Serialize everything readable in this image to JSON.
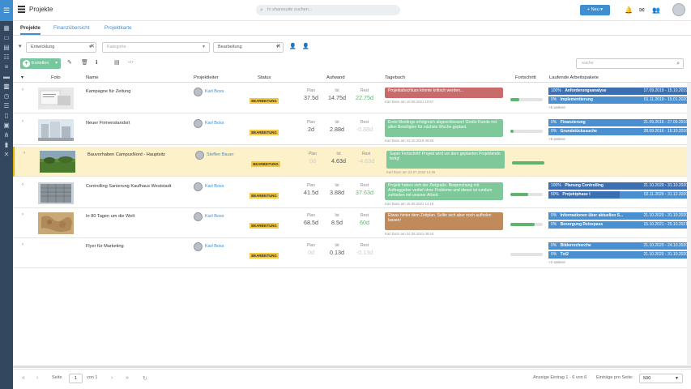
{
  "header": {
    "title": "Projekte",
    "search_placeholder": "In sharesuite suchen...",
    "new_button": "Neu"
  },
  "tabs": [
    "Projekte",
    "Finanzübersicht",
    "Projektkarte"
  ],
  "filters": {
    "department": "Entwicklung",
    "category_placeholder": "Kategorie",
    "status": "Bearbeitung"
  },
  "toolbar": {
    "create_label": "Erstellen",
    "search_placeholder": "suche"
  },
  "columns": {
    "photo": "Foto",
    "name": "Name",
    "lead": "Projektleiter",
    "status": "Status",
    "effort": "Aufwand",
    "journal": "Tagebuch",
    "progress": "Fortschritt",
    "packages": "Laufende Arbeitspakete"
  },
  "labels": {
    "plan": "Plan",
    "ist": "Ist",
    "rest": "Rest"
  },
  "rows": [
    {
      "name": "Kampagne für Zeitung",
      "lead": "Karl Boss",
      "status": "BEARBEITUNG",
      "plan": "37.5d",
      "ist": "14.75d",
      "rest": "22.75d",
      "message": "Projektabschluss könnte kritisch werden...",
      "message_color": "#c96b6b",
      "meta": "Karl Boss am 10.09.2021 10:57",
      "progress": 0.28,
      "packages": [
        {
          "pct": "100%",
          "name": "Anforderungsanalyse",
          "dates": "17.09.2019 - 15.10.2019",
          "fill": 1.0
        },
        {
          "pct": "0%",
          "name": "Implementierung",
          "dates": "01.11.2019 - 15.01.2020",
          "fill": 0.0
        }
      ],
      "more": "+5 weitere"
    },
    {
      "name": "Neuer Firmenstandort",
      "lead": "Karl Boss",
      "status": "BEARBEITUNG",
      "plan": "2d",
      "ist": "2.88d",
      "rest": "-0.88d",
      "message": "Erste Meetings erfolgreich abgeschlossen! Große Runde mit allen Beteiligten für nächste Woche geplant.",
      "message_color": "#7fc89a",
      "meta": "Karl Boss am 22.10.2019 08:55",
      "progress": 0.1,
      "packages": [
        {
          "pct": "0%",
          "name": "Finanzierung",
          "dates": "21.09.2016 - 27.09.2016",
          "fill": 0.0
        },
        {
          "pct": "0%",
          "name": "Grundstückssuche",
          "dates": "28.09.2016 - 15.10.2016",
          "fill": 0.0
        }
      ],
      "more": "+5 weitere"
    },
    {
      "name": "Bauvorhaben CampusNord - Hauptsitz",
      "lead": "Steffen Bauer",
      "status": "BEARBEITUNG",
      "plan": "0d",
      "ist": "4.63d",
      "rest": "-4.63d",
      "message": "Super Fortschritt! Projekt wird vor dem geplanten Projektende fertig!",
      "message_color": "#7fc89a",
      "meta": "Karl Boss am 23.07.2020 14:49",
      "progress": 1.0,
      "packages": [],
      "more": ""
    },
    {
      "name": "Controlling Sanierung Kaufhaus Weststadt",
      "lead": "Karl Boss",
      "status": "BEARBEITUNG",
      "plan": "41.5d",
      "ist": "3.88d",
      "rest": "37.63d",
      "message": "Projekt haben sich der Zielgrade. Besprechung mit Auftraggeber verlief ohne Probleme und dieser ist rundum zufrieden mit unserer Arbeit.",
      "message_color": "#7fc89a",
      "meta": "Karl Boss am 16.09.2021 14:19",
      "progress": 0.55,
      "packages": [
        {
          "pct": "100%",
          "name": "Planung Controlling",
          "dates": "21.10.2020 - 31.10.2020",
          "fill": 1.0
        },
        {
          "pct": "50%",
          "name": "Projektphase I",
          "dates": "02.11.2020 - 31.12.2020",
          "fill": 0.5
        }
      ],
      "more": ""
    },
    {
      "name": "In 80 Tagen um die Welt",
      "lead": "Karl Boss",
      "status": "BEARBEITUNG",
      "plan": "68.5d",
      "ist": "8.5d",
      "rest": "60d",
      "message": "Etwas hinter dem Zeitplan. Sollte sich aber noch aufholen lassen!",
      "message_color": "#c08a5a",
      "meta": "Karl Boss am 24.08.2021 09:44",
      "progress": 0.75,
      "packages": [
        {
          "pct": "0%",
          "name": "Informationen über aktuellen S...",
          "dates": "21.10.2020 - 31.10.2020",
          "fill": 0.0
        },
        {
          "pct": "0%",
          "name": "Besorgung Reisepass",
          "dates": "15.10.2021 - 25.10.2021",
          "fill": 0.0
        }
      ],
      "more": ""
    },
    {
      "name": "Flyer für Marketing",
      "lead": "Karl Boss",
      "status": "BEARBEITUNG",
      "plan": "0d",
      "ist": "0.13d",
      "rest": "-0.13d",
      "message": "",
      "message_color": "",
      "meta": "",
      "progress": 0.0,
      "packages": [
        {
          "pct": "0%",
          "name": "Bilderrecherche",
          "dates": "21.10.2020 - 24.10.2020",
          "fill": 0.0
        },
        {
          "pct": "0%",
          "name": "Txt2",
          "dates": "21.10.2020 - 31.10.2020",
          "fill": 0.0
        }
      ],
      "more": "+2 weitere"
    }
  ],
  "pager": {
    "page_label": "Seite",
    "page": "1",
    "of_label": "von 1",
    "summary": "Anzeige Eintrag 1 - 6 von 6",
    "per_page_label": "Einträge pro Seite:",
    "per_page": "500"
  }
}
